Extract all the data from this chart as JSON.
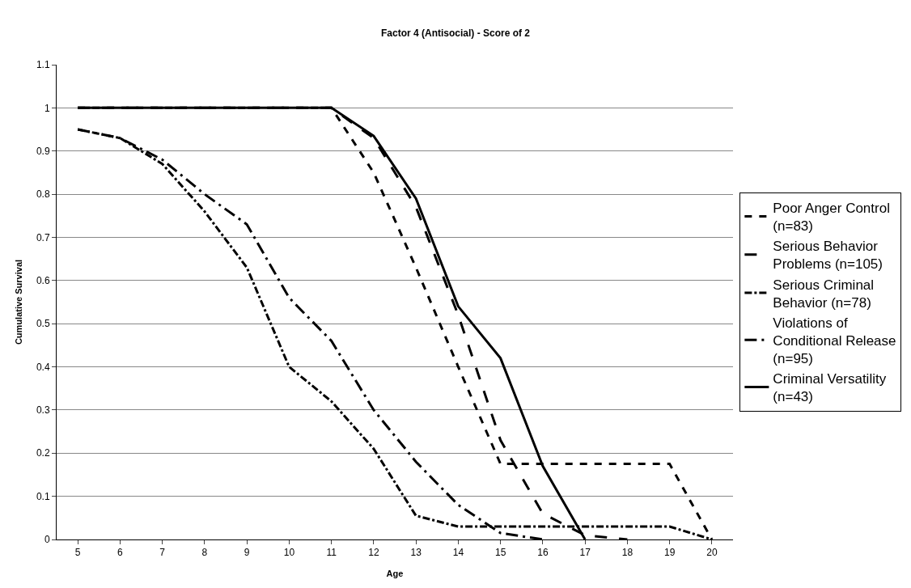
{
  "chart_data": {
    "type": "line",
    "title": "Factor 4 (Antisocial) - Score of 2",
    "xlabel": "Age",
    "ylabel": "Cumulative Survival",
    "categories": [
      "5",
      "6",
      "7",
      "8",
      "9",
      "10",
      "11",
      "12",
      "13",
      "14",
      "15",
      "16",
      "17",
      "18",
      "19",
      "20"
    ],
    "ylim": [
      0,
      1.1
    ],
    "yticks": [
      0,
      0.1,
      0.2,
      0.3,
      0.4,
      0.5,
      0.6,
      0.7,
      0.8,
      0.9,
      1,
      1.1
    ],
    "grid": "y",
    "legend": "right",
    "marker": "none",
    "series": [
      {
        "name": "Poor Anger Control (n=83)",
        "color": "#000000",
        "line_style": "dashed",
        "values": [
          1,
          1,
          1,
          1,
          1,
          1,
          1,
          0.85,
          0.63,
          0.4,
          0.175,
          0.175,
          0.175,
          0.175,
          0.175,
          0
        ]
      },
      {
        "name": "Serious Behavior Problems (n=105)",
        "color": "#000000",
        "line_style": "long dashed",
        "values": [
          1,
          1,
          1,
          1,
          1,
          1,
          1,
          0.93,
          0.77,
          0.52,
          0.23,
          0.06,
          0.01,
          0,
          null,
          null
        ]
      },
      {
        "name": "Serious Criminal Behavior (n=78)",
        "color": "#000000",
        "line_style": "dash-dot",
        "values": [
          0.95,
          0.93,
          0.87,
          0.76,
          0.63,
          0.4,
          0.32,
          0.21,
          0.055,
          0.03,
          0.03,
          0.03,
          0.03,
          0.03,
          0.03,
          0
        ]
      },
      {
        "name": "Violations of Conditional Release (n=95)",
        "color": "#000000",
        "line_style": "long dash-dot",
        "values": [
          0.95,
          0.93,
          0.88,
          0.8,
          0.73,
          0.56,
          0.46,
          0.3,
          0.18,
          0.08,
          0.015,
          0,
          null,
          null,
          null,
          null
        ]
      },
      {
        "name": "Criminal Versatility (n=43)",
        "color": "#000000",
        "line_style": "solid",
        "values": [
          1,
          1,
          1,
          1,
          1,
          1,
          1,
          0.935,
          0.79,
          0.54,
          0.42,
          0.17,
          0,
          null,
          null,
          null
        ]
      }
    ]
  }
}
